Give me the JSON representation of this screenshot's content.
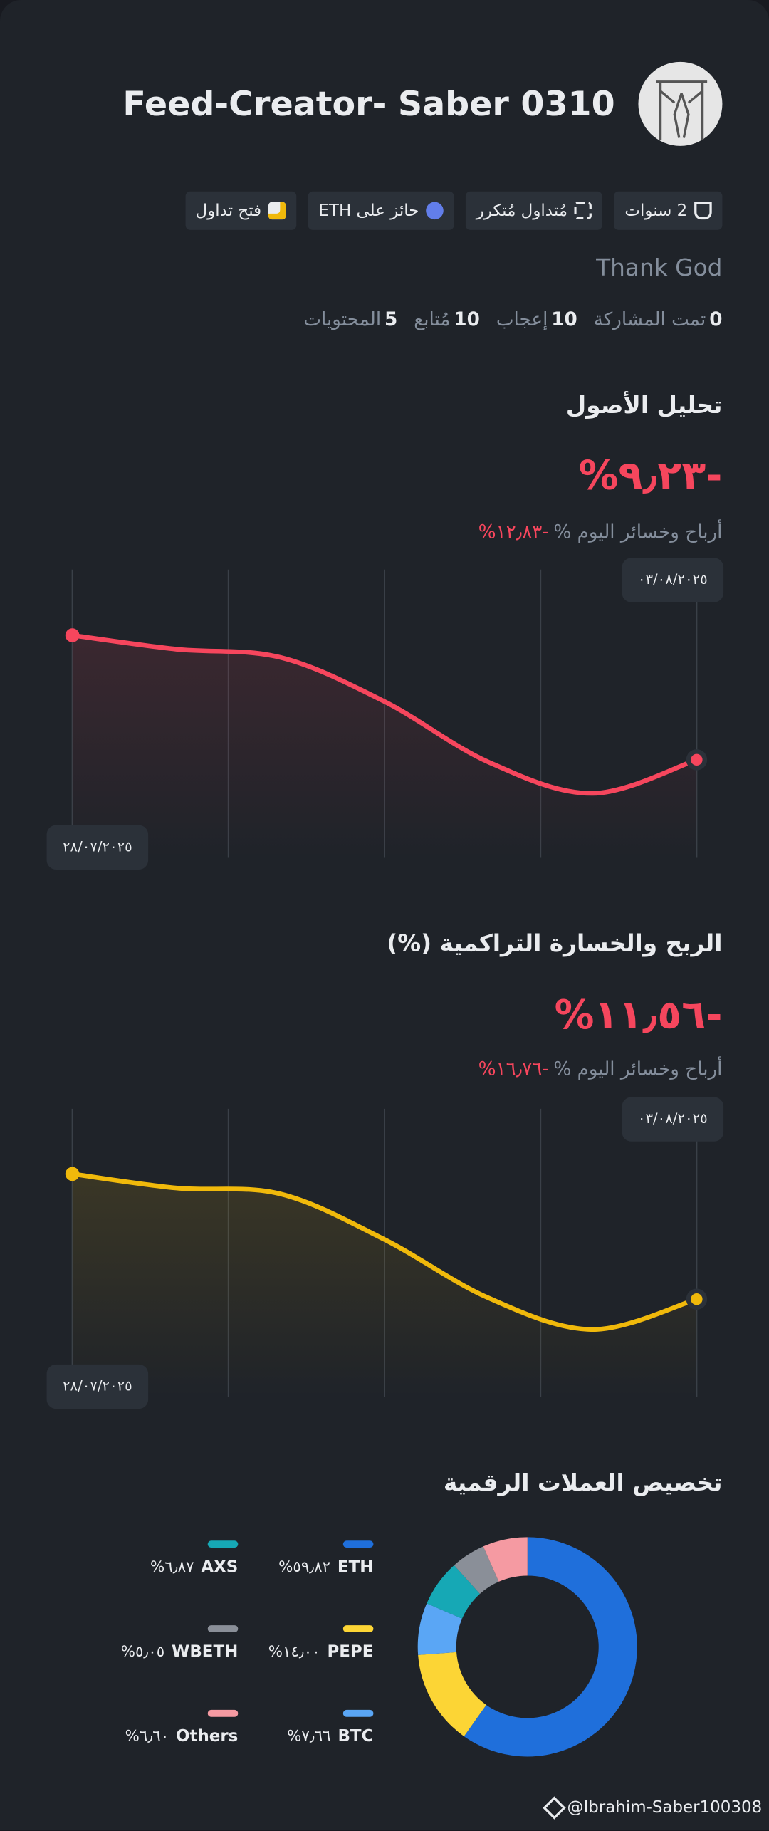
{
  "header": {
    "name": "Feed-Creator- Saber 0310",
    "badges": [
      "2 سنوات",
      "مُتداول مُتكرر",
      "حائز على ETH",
      "فتح تداول"
    ],
    "bio": "Thank God",
    "stats": [
      {
        "value": 0,
        "label": "تمت المشاركة"
      },
      {
        "value": 10,
        "label": "إعجاب"
      },
      {
        "value": 10,
        "label": "مُتابع"
      },
      {
        "value": 5,
        "label": "المحتويات"
      }
    ]
  },
  "chart_data": [
    {
      "type": "line",
      "title": "تحليل الأصول",
      "headline": "%٩٫٢٣-",
      "subtitle": "أرباح وخسائر اليوم %",
      "subtitle_value": "%١٢٫٨٣-",
      "categories": [
        "٢٨/٠٧/٢٠٢٥",
        null,
        null,
        null,
        null,
        null,
        "٠٣/٠٨/٢٠٢٥"
      ],
      "values": [
        0,
        -1.03,
        -1.64,
        -4.91,
        -9.4,
        -11.72,
        -9.23
      ],
      "color": "#f6465d",
      "ylim": [
        -16.5,
        4.7
      ]
    },
    {
      "type": "line",
      "title": "الربح والخسارة التراكمية (%)",
      "headline": "%١١٫٥٦-",
      "subtitle": "أرباح وخسائر اليوم %",
      "subtitle_value": "%١٦٫٧٦-",
      "categories": [
        "٢٨/٠٧/٢٠٢٥",
        null,
        null,
        null,
        null,
        null,
        "٠٣/٠٨/٢٠٢٥"
      ],
      "values": [
        0,
        -1.3,
        -1.84,
        -6.05,
        -11.45,
        -14.36,
        -11.56
      ],
      "color": "#f0b90b",
      "ylim": [
        -20.6,
        5.8
      ]
    },
    {
      "type": "pie",
      "title": "تخصيص العملات الرقمية",
      "categories": [
        "ETH",
        "PEPE",
        "BTC",
        "AXS",
        "WBETH",
        "Others"
      ],
      "values": [
        59.82,
        14.0,
        7.66,
        6.87,
        5.05,
        6.6
      ],
      "value_labels": [
        "%٥٩٫٨٢",
        "%١٤٫٠٠",
        "%٧٫٦٦",
        "%٦٫٨٧",
        "%٥٫٠٥",
        "%٦٫٦٠"
      ],
      "colors": [
        "#1f6fdb",
        "#fcd535",
        "#5aa6f5",
        "#16a8b5",
        "#8a8f98",
        "#f59aa2"
      ]
    }
  ],
  "footer": {
    "handle": "@Ibrahim-Saber100308"
  }
}
